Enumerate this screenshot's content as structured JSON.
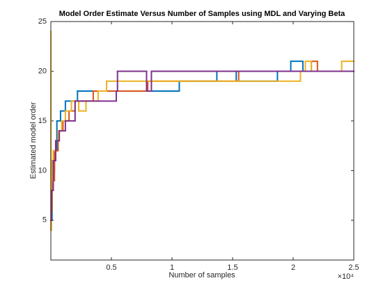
{
  "chart_data": {
    "type": "line",
    "step": true,
    "title": "Model Order Estimate Versus Number of Samples using MDL and Varying Beta",
    "x_label": "Number of samples",
    "y_label": "Estimated model order",
    "x_exponent_label": "×10⁴",
    "xlim": [
      0,
      25000
    ],
    "xticks": [
      {
        "value": 5000,
        "label": "0.5"
      },
      {
        "value": 10000,
        "label": "1"
      },
      {
        "value": 15000,
        "label": "1.5"
      },
      {
        "value": 20000,
        "label": "2"
      },
      {
        "value": 25000,
        "label": "2.5"
      }
    ],
    "ylim": [
      1,
      25
    ],
    "yticks": [
      5,
      10,
      15,
      20,
      25
    ],
    "series": [
      {
        "color": "#0072bd",
        "x": [
          0,
          100,
          300,
          500,
          800,
          1200,
          2200,
          10600,
          13700,
          15300,
          18700,
          19800,
          20800,
          25000
        ],
        "values": [
          5,
          10,
          12,
          15,
          16,
          17,
          18,
          19,
          20,
          19,
          20,
          21,
          20,
          20
        ]
      },
      {
        "color": "#d95319",
        "x": [
          0,
          100,
          300,
          600,
          1000,
          1500,
          2000,
          3500,
          8000,
          14000,
          15500,
          21500,
          22000,
          25000
        ],
        "values": [
          6,
          9,
          12,
          14,
          15,
          16,
          17,
          18,
          19,
          19,
          20,
          21,
          20,
          20
        ]
      },
      {
        "color": "#edb120",
        "x": [
          0,
          10,
          50,
          100,
          200,
          400,
          600,
          900,
          1200,
          1700,
          2300,
          2900,
          3900,
          4600,
          15200,
          20600,
          21000,
          21500,
          24000,
          25000
        ],
        "values": [
          24,
          4,
          9,
          11,
          12,
          13,
          14,
          15,
          16,
          17,
          16,
          17,
          18,
          19,
          19,
          20,
          21,
          20,
          21,
          21
        ]
      },
      {
        "color": "#7e2f8e",
        "x": [
          0,
          50,
          200,
          400,
          700,
          1200,
          2000,
          5400,
          5500,
          7900,
          8300,
          25000
        ],
        "values": [
          5,
          8,
          11,
          13,
          14,
          15,
          17,
          18,
          20,
          18,
          20,
          20
        ]
      }
    ]
  }
}
